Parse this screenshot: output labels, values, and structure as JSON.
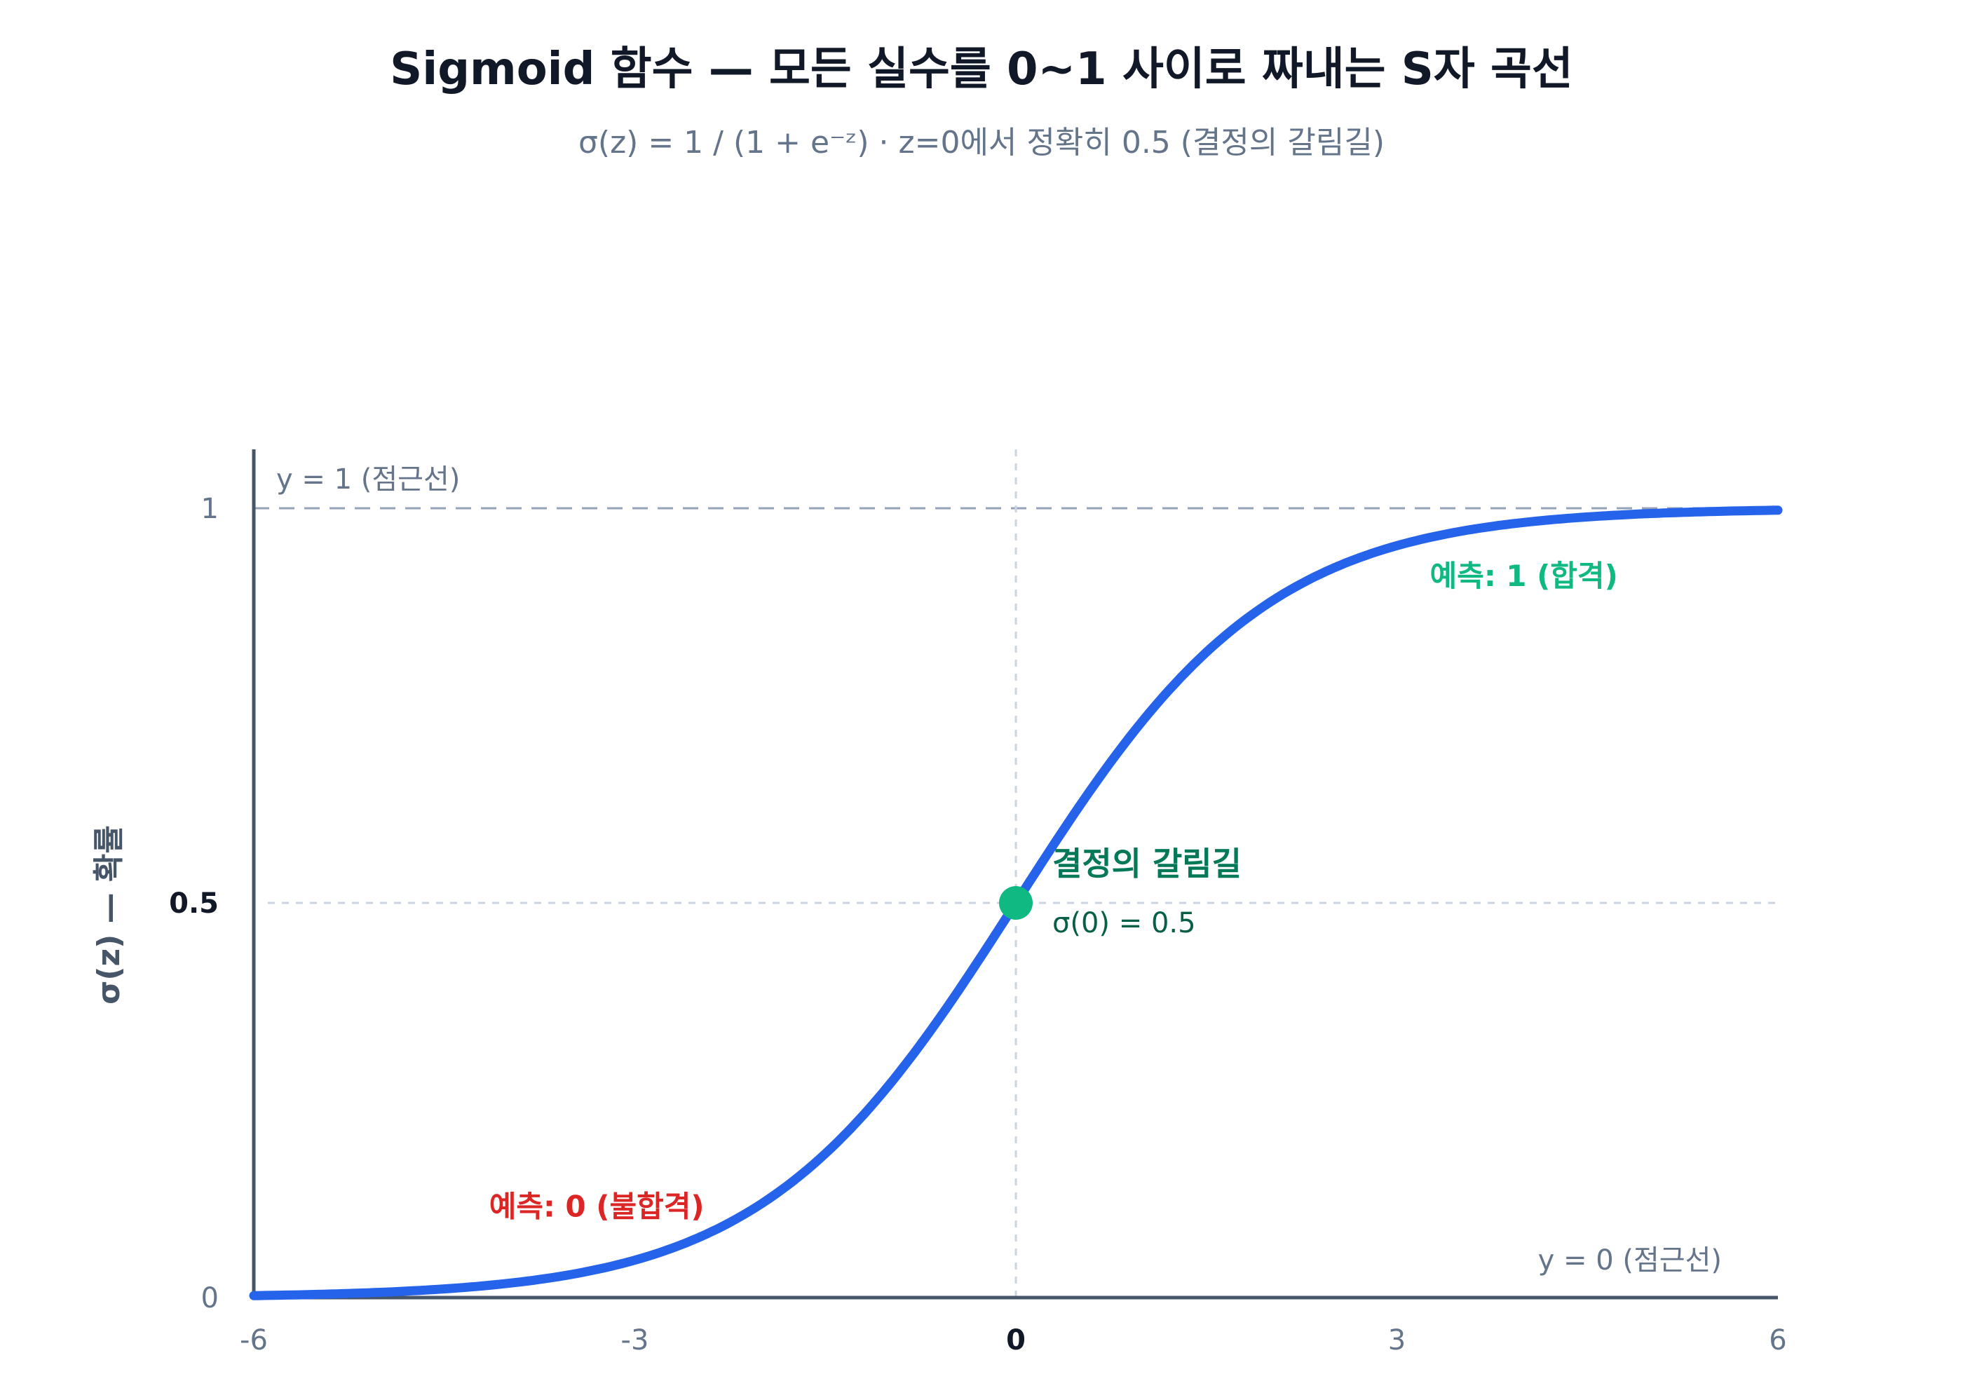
{
  "chart_data": {
    "type": "line",
    "title": "Sigmoid 함수 — 모든 실수를 0~1 사이로 짜내는 S자 곡선",
    "subtitle": "σ(z) = 1 / (1 + e⁻ᶻ) · z=0에서 정확히 0.5 (결정의 갈림길)",
    "xlabel": "",
    "ylabel": "σ(z) — 확률",
    "xlim": [
      -6,
      6
    ],
    "ylim": [
      0,
      1
    ],
    "x_ticks": [
      {
        "value": -6,
        "label": "-6"
      },
      {
        "value": -3,
        "label": "-3"
      },
      {
        "value": 0,
        "label": "0"
      },
      {
        "value": 3,
        "label": "3"
      },
      {
        "value": 6,
        "label": "6"
      }
    ],
    "y_ticks": [
      {
        "value": 0,
        "label": "0"
      },
      {
        "value": 0.5,
        "label": "0.5"
      },
      {
        "value": 1,
        "label": "1"
      }
    ],
    "series": [
      {
        "x": [
          -6,
          -5.5,
          -5,
          -4.5,
          -4,
          -3.5,
          -3,
          -2.5,
          -2,
          -1.5,
          -1,
          -0.5,
          0,
          0.5,
          1,
          1.5,
          2,
          2.5,
          3,
          3.5,
          4,
          4.5,
          5,
          5.5,
          6
        ],
        "y": [
          0.0025,
          0.0041,
          0.0067,
          0.011,
          0.018,
          0.0293,
          0.0474,
          0.0759,
          0.1192,
          0.1824,
          0.2689,
          0.3775,
          0.5,
          0.6225,
          0.7311,
          0.8176,
          0.8808,
          0.9241,
          0.9526,
          0.9707,
          0.982,
          0.989,
          0.9933,
          0.9959,
          0.9975
        ],
        "color": "#2563eb"
      }
    ],
    "reference_lines": [
      {
        "axis": "y",
        "value": 1,
        "label": "y = 1 (점근선)",
        "style": "dashed"
      },
      {
        "axis": "y",
        "value": 0,
        "label": "y = 0 (점근선)",
        "style": "solid"
      },
      {
        "axis": "y",
        "value": 0.5,
        "label": "",
        "style": "dotted"
      },
      {
        "axis": "x",
        "value": 0,
        "label": "",
        "style": "dotted"
      }
    ],
    "highlight_point": {
      "x": 0,
      "y": 0.5,
      "label": "결정의 갈림길",
      "sublabel": "σ(0) = 0.5",
      "color": "#10b981"
    },
    "annotations": [
      {
        "text": "예측: 1 (합격)",
        "x": 4,
        "y": 0.914,
        "color": "#10b981"
      },
      {
        "text": "예측: 0 (불합격)",
        "x": -3.3,
        "y": 0.115,
        "color": "#dc2626"
      }
    ],
    "grid": false,
    "legend": "none"
  }
}
